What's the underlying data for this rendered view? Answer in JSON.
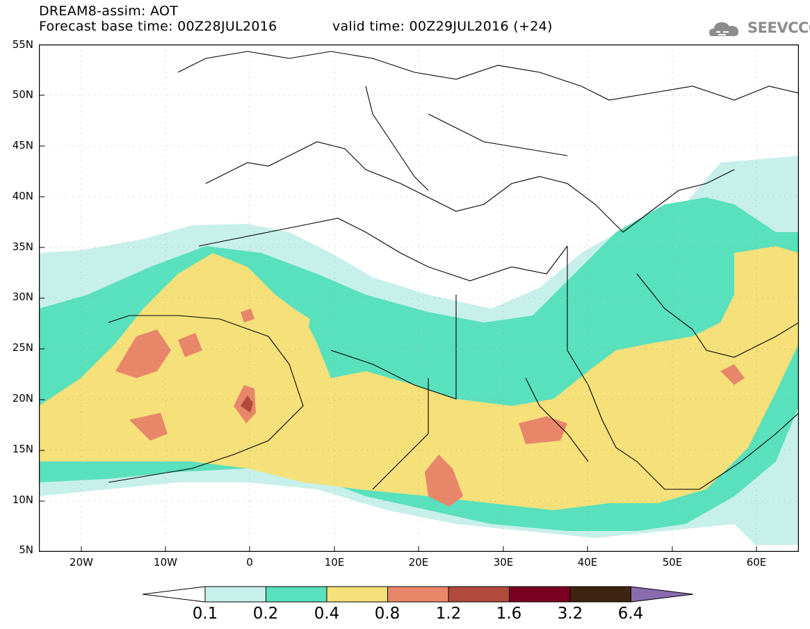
{
  "header": {
    "line1": "DREAM8-assim: AOT",
    "line2": "Forecast base time: 00Z28JUL2016",
    "line3": "valid time: 00Z29JUL2016 (+24)"
  },
  "logo": {
    "text": "SEEVCCC",
    "icon": "cloud-logo-icon",
    "color": "#8c8c8c"
  },
  "map": {
    "lon_range": [
      -25,
      65
    ],
    "lat_range": [
      5,
      55
    ],
    "lat_labels": [
      "55N",
      "50N",
      "45N",
      "40N",
      "35N",
      "30N",
      "25N",
      "20N",
      "15N",
      "10N",
      "5N"
    ],
    "lon_labels": [
      "20W",
      "10W",
      "0",
      "10E",
      "20E",
      "30E",
      "40E",
      "50E",
      "60E"
    ]
  },
  "colorbar": {
    "labels": [
      "0.1",
      "0.2",
      "0.4",
      "0.8",
      "1.2",
      "1.6",
      "3.2",
      "6.4"
    ],
    "colors": [
      "#c7f0ea",
      "#59e0bc",
      "#f5e07a",
      "#e8866a",
      "#b04a3c",
      "#7a0022",
      "#3e2410",
      "#8a6bb0"
    ]
  }
}
